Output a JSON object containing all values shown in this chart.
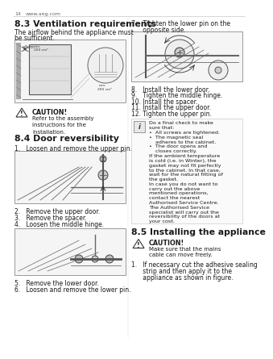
{
  "page_num": "14",
  "website": "www.aeg.com",
  "bg_color": "#ffffff",
  "text_color": "#1a1a1a",
  "gray_med": "#888888",
  "gray_light": "#cccccc",
  "gray_dark": "#444444",
  "section_83_title": "8.3 Ventilation requirements",
  "section_83_body1": "The airflow behind the appliance must",
  "section_83_body2": "be sufficient.",
  "caution_title": "CAUTION!",
  "caution_body": "Refer to the assembly\ninstructions for the\ninstallation.",
  "section_84_title": "8.4 Door reversibility",
  "step1": "1.   Loosen and remove the upper pin.",
  "step2": "2.   Remove the upper door.",
  "step3": "3.   Remove the spacer.",
  "step4": "4.   Loosen the middle hinge.",
  "step5": "5.   Remove the lower door.",
  "step6": "6.   Loosen and remove the lower pin.",
  "step7_line1": "7.   Tighten the lower pin on the",
  "step7_line2": "      opposite side.",
  "step8": "8.   Install the lower door.",
  "step9": "9.   Tighten the middle hinge.",
  "step10": "10. Install the spacer.",
  "step11": "11. Install the upper door.",
  "step12": "12. Tighten the upper pin.",
  "info_line1": "Do a final check to make",
  "info_line2": "sure that:",
  "info_bullet1": "•  All screws are tightened.",
  "info_bullet2": "•  The magnetic seal",
  "info_bullet2b": "    adheres to the cabinet.",
  "info_bullet3": "•  The door opens and",
  "info_bullet3b": "    closes correctly.",
  "info_para1": "If the ambient temperature",
  "info_para2": "is cold (i.e. in Winter), the",
  "info_para3": "gasket may not fit perfectly",
  "info_para4": "to the cabinet. In that case,",
  "info_para5": "wait for the natural fitting of",
  "info_para6": "the gasket.",
  "info_para7": "In case you do not want to",
  "info_para8": "carry out the above",
  "info_para9": "mentioned operations,",
  "info_para10": "contact the nearest",
  "info_para11": "Authorised Service Centre.",
  "info_para12": "The Authorised Service",
  "info_para13": "specialist will carry out the",
  "info_para14": "reversibility of the doors at",
  "info_para15": "your cost.",
  "section_85_title": "8.5 Installing the appliance",
  "caution2_title": "CAUTION!",
  "caution2_body1": "Make sure that the mains",
  "caution2_body2": "cable can move freely.",
  "step85_1": "1.   If necessary cut the adhesive sealing",
  "step85_2": "      strip and then apply it to the",
  "step85_3": "      appliance as shown in figure."
}
